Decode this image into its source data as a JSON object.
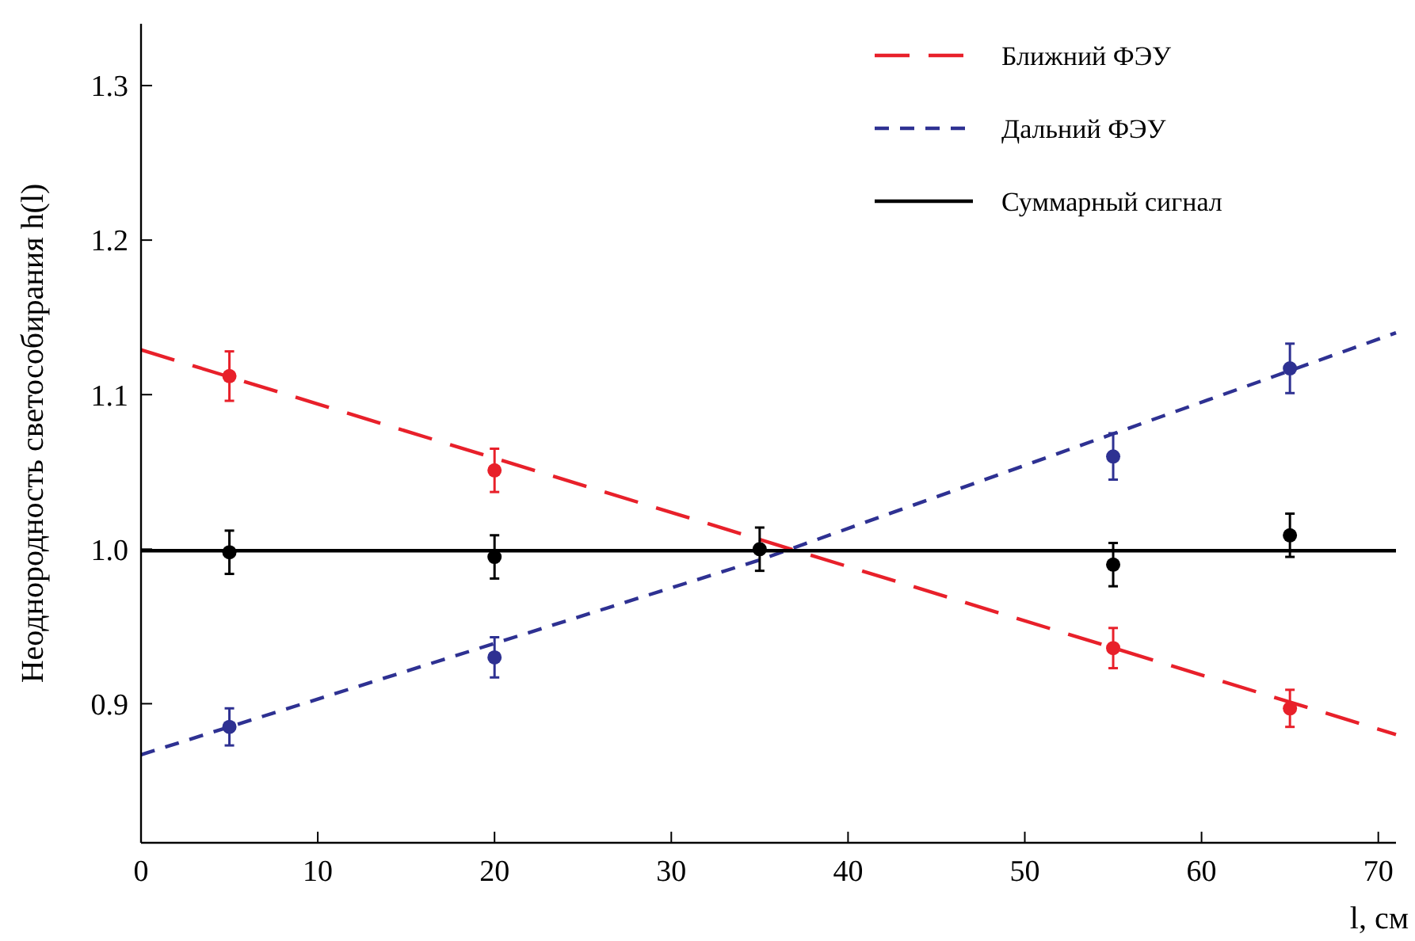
{
  "chart_data": {
    "type": "scatter",
    "xlabel": "l, см",
    "ylabel": "Неоднородность светособирания h(l)",
    "xlim": [
      0,
      71
    ],
    "ylim": [
      0.81,
      1.34
    ],
    "xticks": [
      0,
      10,
      20,
      30,
      40,
      50,
      60,
      70
    ],
    "yticks": [
      0.9,
      {
        "value": 1.0,
        "label": "1.0"
      },
      1.1,
      1.2,
      1.3
    ],
    "grid": false,
    "legend": "top right",
    "marker": "circle",
    "series": [
      {
        "name": "Ближний ФЭУ",
        "type": "line",
        "color": "#e8202a",
        "line_style": "dashed",
        "marker": "none",
        "x": [
          0,
          71
        ],
        "values": [
          1.129,
          0.88
        ]
      },
      {
        "name": "Дальний ФЭУ",
        "type": "line",
        "color": "#2e3192",
        "line_style": "dashed",
        "marker": "none",
        "x": [
          0,
          35,
          71
        ],
        "values": [
          0.867,
          0.993,
          1.14
        ]
      },
      {
        "name": "Суммарный сигнал",
        "type": "line",
        "color": "#000000",
        "line_style": "solid",
        "marker": "none",
        "x": [
          0,
          71
        ],
        "values": [
          0.999,
          0.999
        ]
      },
      {
        "color": "#e8202a",
        "x": [
          5,
          20,
          55,
          65
        ],
        "values": [
          1.112,
          1.051,
          0.936,
          0.897
        ],
        "errors": [
          0.016,
          0.014,
          0.013,
          0.012
        ]
      },
      {
        "color": "#2e3192",
        "x": [
          5,
          20,
          55,
          65
        ],
        "values": [
          0.885,
          0.93,
          1.06,
          1.117
        ],
        "errors": [
          0.012,
          0.013,
          0.015,
          0.016
        ]
      },
      {
        "color": "#000000",
        "x": [
          5,
          20,
          35,
          55,
          65
        ],
        "values": [
          0.998,
          0.995,
          1.0,
          0.99,
          1.009
        ],
        "errors": [
          0.014,
          0.014,
          0.014,
          0.014,
          0.014
        ]
      }
    ]
  }
}
